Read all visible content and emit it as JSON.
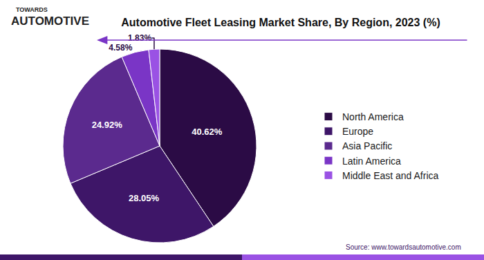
{
  "chart_data": {
    "type": "pie",
    "title": "Automotive Fleet Leasing Market Share, By Region, 2023 (%)",
    "logo": {
      "top": "TOWARDS",
      "bottom": "AUTOMOTIVE"
    },
    "source": "Source: www.towardsautomotive.com",
    "categories": [
      "North America",
      "Europe",
      "Asia Pacific",
      "Latin America",
      "Middle East and Africa"
    ],
    "values": [
      40.62,
      28.05,
      24.92,
      4.58,
      1.83
    ],
    "value_labels": [
      "40.62%",
      "28.05%",
      "24.92%",
      "4.58%",
      "1.83%"
    ],
    "colors": [
      "#2b0b45",
      "#3e1668",
      "#5b2a8e",
      "#7a35c6",
      "#9a52e4"
    ],
    "data_labels": true,
    "legend": "right"
  }
}
